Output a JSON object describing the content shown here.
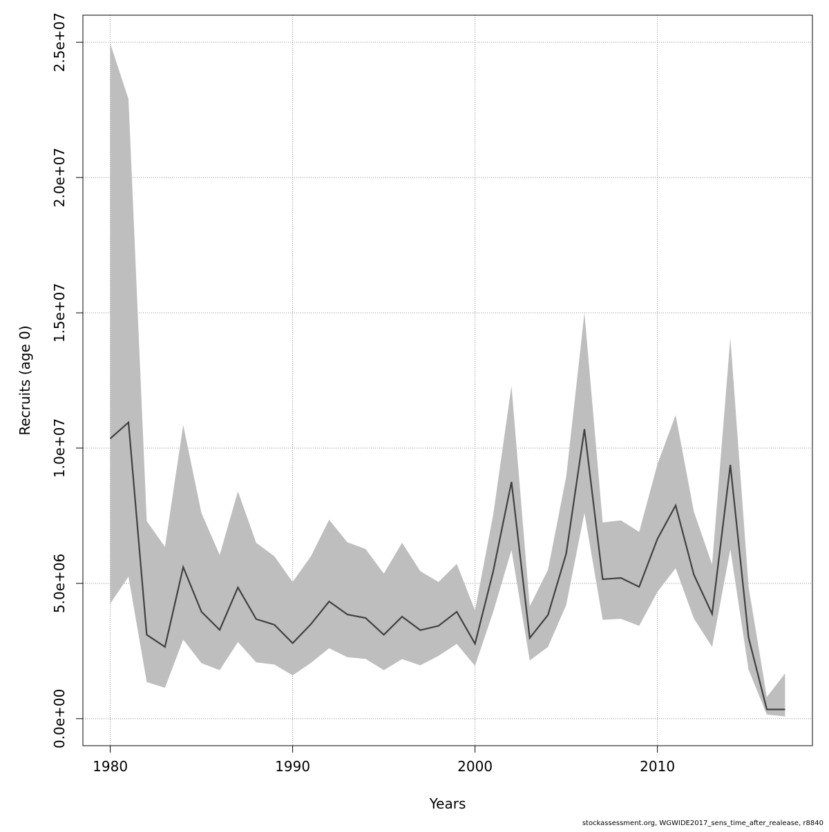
{
  "chart_data": {
    "type": "line",
    "title": "",
    "xlabel": "Years",
    "ylabel": "Recruits (age 0)",
    "xlim": [
      1978.5,
      2018.5
    ],
    "ylim": [
      -1000000,
      26000000
    ],
    "grid": true,
    "x_ticks": [
      1980,
      1990,
      2000,
      2010
    ],
    "x_tick_labels": [
      "1980",
      "1990",
      "2000",
      "2010"
    ],
    "y_ticks": [
      0,
      5000000,
      10000000,
      15000000,
      20000000,
      25000000
    ],
    "y_tick_labels": [
      "0.0e+00",
      "5.0e+06",
      "1.0e+07",
      "1.5e+07",
      "2.0e+07",
      "2.5e+07"
    ],
    "x": [
      1980,
      1981,
      1982,
      1983,
      1984,
      1985,
      1986,
      1987,
      1988,
      1989,
      1990,
      1991,
      1992,
      1993,
      1994,
      1995,
      1996,
      1997,
      1998,
      1999,
      2000,
      2001,
      2002,
      2003,
      2004,
      2005,
      2006,
      2007,
      2008,
      2009,
      2010,
      2011,
      2012,
      2013,
      2014,
      2015,
      2016,
      2017
    ],
    "series": [
      {
        "role": "estimate",
        "color": "#404040",
        "values": [
          10350000,
          10950000,
          3100000,
          2650000,
          5600000,
          3950000,
          3280000,
          4850000,
          3680000,
          3470000,
          2790000,
          3490000,
          4330000,
          3850000,
          3720000,
          3100000,
          3770000,
          3270000,
          3430000,
          3950000,
          2770000,
          5450000,
          8750000,
          2980000,
          3830000,
          6100000,
          10700000,
          5150000,
          5200000,
          4870000,
          6640000,
          7880000,
          5320000,
          3870000,
          9380000,
          2990000,
          340000,
          340000
        ]
      },
      {
        "role": "upper_bound",
        "color": "#bebebe",
        "values": [
          24950000,
          22900000,
          7300000,
          6350000,
          10850000,
          7600000,
          6050000,
          8400000,
          6500000,
          6000000,
          5050000,
          6000000,
          7350000,
          6520000,
          6270000,
          5360000,
          6500000,
          5450000,
          5050000,
          5720000,
          4000000,
          7550000,
          12300000,
          4150000,
          5500000,
          8950000,
          15000000,
          7250000,
          7330000,
          6900000,
          9400000,
          11220000,
          7650000,
          5700000,
          14080000,
          4870000,
          800000,
          1670000
        ]
      },
      {
        "role": "lower_bound",
        "color": "#bebebe",
        "values": [
          4250000,
          5250000,
          1350000,
          1140000,
          2920000,
          2050000,
          1790000,
          2830000,
          2080000,
          2000000,
          1600000,
          2060000,
          2600000,
          2270000,
          2210000,
          1790000,
          2200000,
          1970000,
          2320000,
          2760000,
          1950000,
          3950000,
          6230000,
          2150000,
          2650000,
          4200000,
          7600000,
          3650000,
          3690000,
          3430000,
          4680000,
          5560000,
          3700000,
          2650000,
          6260000,
          1810000,
          150000,
          80000
        ]
      }
    ],
    "band_color": "#bebebe",
    "line_color": "#404040",
    "grid_color": "#888888"
  },
  "footer": {
    "credit": "stockassessment.org, WGWIDE2017_sens_time_after_realease, r8840"
  }
}
